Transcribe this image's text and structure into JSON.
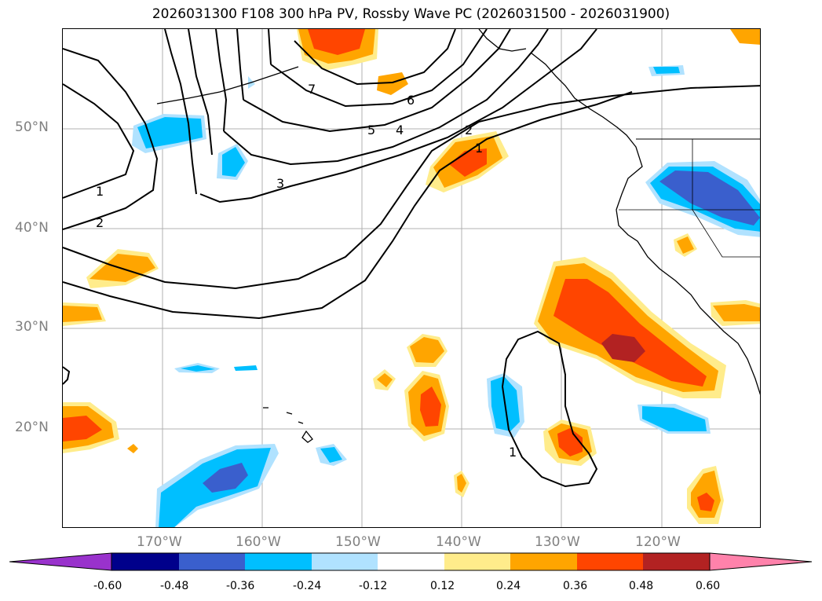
{
  "title": "2026031300 F108 300 hPa PV, Rossby Wave PC (2026031500 - 2026031900)",
  "map": {
    "lat_labels": [
      {
        "text": "50°N",
        "lat": 50
      },
      {
        "text": "40°N",
        "lat": 40
      },
      {
        "text": "30°N",
        "lat": 30
      },
      {
        "text": "20°N",
        "lat": 20
      }
    ],
    "lon_labels": [
      {
        "text": "170°W",
        "lon": -170
      },
      {
        "text": "160°W",
        "lon": -160
      },
      {
        "text": "150°W",
        "lon": -150
      },
      {
        "text": "140°W",
        "lon": -140
      },
      {
        "text": "130°W",
        "lon": -130
      },
      {
        "text": "120°W",
        "lon": -120
      }
    ],
    "extent": {
      "lon_min": -180,
      "lon_max": -110,
      "lat_min": 10,
      "lat_max": 60
    },
    "contour_labels": [
      "1",
      "2",
      "3",
      "4",
      "5",
      "6",
      "7",
      "2",
      "1",
      "1"
    ]
  },
  "colorbar": {
    "levels": [
      "-0.60",
      "-0.48",
      "-0.36",
      "-0.24",
      "-0.12",
      "0.12",
      "0.24",
      "0.36",
      "0.48",
      "0.60"
    ],
    "colors": {
      "under": "#9932CC",
      "c1": "#00008B",
      "c2": "#3A5FCD",
      "c3": "#00BFFF",
      "c4": "#B0E2FF",
      "c5": "#FFFFFF",
      "c6": "#FFEC8B",
      "c7": "#FFA500",
      "c8": "#FF4500",
      "c9": "#B22222",
      "over": "#FF82AB"
    }
  }
}
